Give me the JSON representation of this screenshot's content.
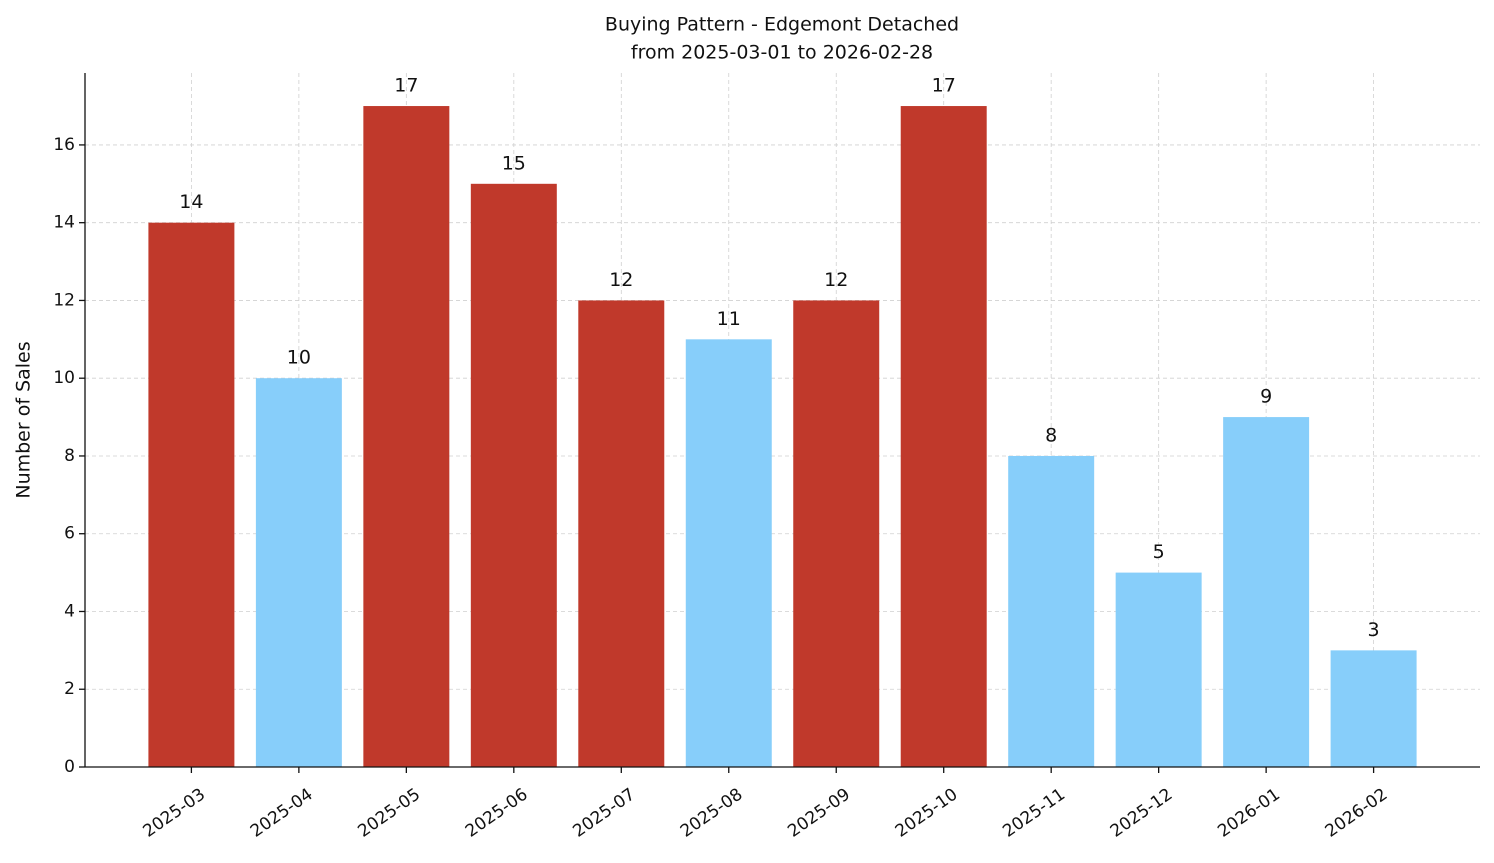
{
  "chart_data": {
    "type": "bar",
    "title": "Buying Pattern - Edgemont Detached",
    "subtitle": "from 2025-03-01 to 2026-02-28",
    "y_label": "Number of Sales",
    "categories": [
      "2025-03",
      "2025-04",
      "2025-05",
      "2025-06",
      "2025-07",
      "2025-08",
      "2025-09",
      "2025-10",
      "2025-11",
      "2025-12",
      "2026-01",
      "2026-02"
    ],
    "values": [
      14,
      10,
      17,
      15,
      12,
      11,
      12,
      17,
      8,
      5,
      9,
      3
    ],
    "colors": [
      "#c0392b",
      "#87cefa",
      "#c0392b",
      "#c0392b",
      "#c0392b",
      "#87cefa",
      "#c0392b",
      "#c0392b",
      "#87cefa",
      "#87cefa",
      "#87cefa",
      "#87cefa"
    ],
    "ylim": [
      0,
      17.85
    ],
    "yticks": [
      0,
      2,
      4,
      6,
      8,
      10,
      12,
      14,
      16
    ],
    "grid": true
  }
}
